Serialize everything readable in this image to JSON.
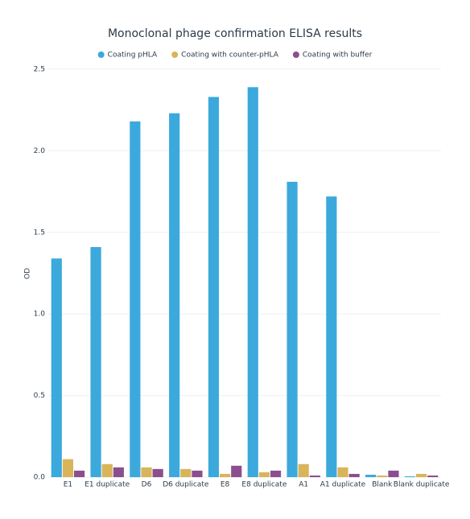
{
  "chart_data": {
    "type": "bar",
    "title": "Monoclonal phage confirmation ELISA results",
    "y_label": "OD",
    "categories": [
      "E1",
      "E1 duplicate",
      "D6",
      "D6 duplicate",
      "E8",
      "E8 duplicate",
      "A1",
      "A1 duplicate",
      "Blank",
      "Blank duplicate"
    ],
    "series": [
      {
        "name": "Coating pHLA",
        "color": "#3ba9dc",
        "values": [
          1.34,
          1.41,
          2.18,
          2.23,
          2.33,
          2.39,
          1.81,
          1.72,
          0.015,
          0.005
        ]
      },
      {
        "name": "Coating with counter-pHLA",
        "color": "#d9b45a",
        "values": [
          0.11,
          0.08,
          0.06,
          0.05,
          0.02,
          0.03,
          0.08,
          0.06,
          0.01,
          0.02
        ]
      },
      {
        "name": "Coating with buffer",
        "color": "#8b4f8f",
        "values": [
          0.04,
          0.06,
          0.05,
          0.04,
          0.07,
          0.04,
          0.01,
          0.02,
          0.04,
          0.01
        ]
      }
    ],
    "ylim": [
      0,
      2.5
    ],
    "yticks": [
      {
        "value": 0,
        "label": "0.0"
      },
      0.5,
      {
        "value": 1,
        "label": "1.0"
      },
      1.5,
      {
        "value": 2,
        "label": "2.0"
      },
      2.5
    ],
    "grid": true
  }
}
